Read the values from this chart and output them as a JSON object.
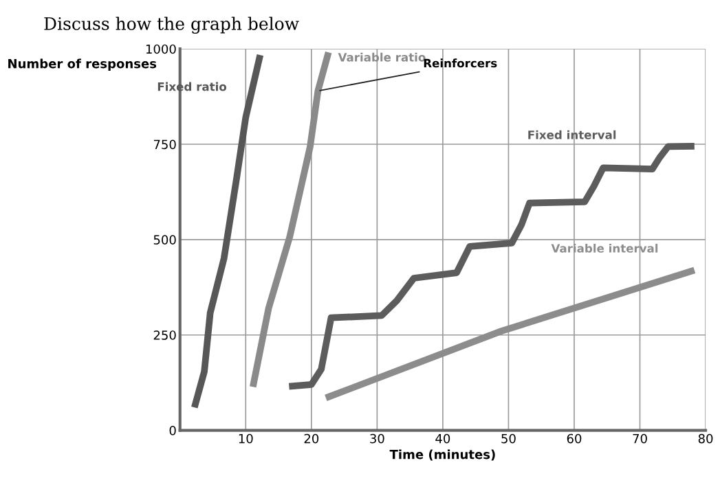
{
  "chart_data": {
    "type": "line",
    "title": "Discuss how the graph below",
    "xlabel": "Time (minutes)",
    "ylabel": "Number of responses",
    "xlim": [
      0,
      80
    ],
    "xticks": [
      10,
      20,
      30,
      40,
      50,
      60,
      70,
      80
    ],
    "ylim": [
      0,
      1000
    ],
    "yticks": [
      0,
      250,
      500,
      750,
      1000
    ],
    "grid": true,
    "marker": "none",
    "line_style": "solid",
    "series": [
      {
        "name": "Fixed ratio",
        "color": "#575757",
        "x": [
          2.2,
          3.7,
          4.6,
          6.7,
          8.6,
          10,
          12.2
        ],
        "values": [
          60,
          154,
          308,
          451,
          659,
          820,
          984
        ]
      },
      {
        "name": "Variable ratio",
        "color": "#8a8a8a",
        "x": [
          11.1,
          13.5,
          16.7,
          19.8,
          21,
          22.6
        ],
        "values": [
          114,
          321,
          507,
          743,
          890,
          991
        ]
      },
      {
        "name": "Fixed interval",
        "color": "#5c5c5c",
        "x": [
          16.6,
          20,
          21.5,
          23,
          30.7,
          33,
          35.6,
          42.1,
          44.1,
          50.5,
          52,
          53.2,
          61.6,
          63,
          64.4,
          71.9,
          73,
          74.3,
          78.3
        ],
        "values": [
          115,
          120,
          160,
          295,
          301,
          340,
          399,
          413,
          482,
          491,
          540,
          596,
          599,
          640,
          688,
          685,
          715,
          744,
          745
        ]
      },
      {
        "name": "Variable interval",
        "color": "#8c8c8c",
        "x": [
          22.2,
          48.9,
          78.3
        ],
        "values": [
          85,
          260,
          420
        ]
      }
    ],
    "annotations": [
      {
        "text": "Reinforcers",
        "x": 21,
        "y": 890
      }
    ]
  }
}
